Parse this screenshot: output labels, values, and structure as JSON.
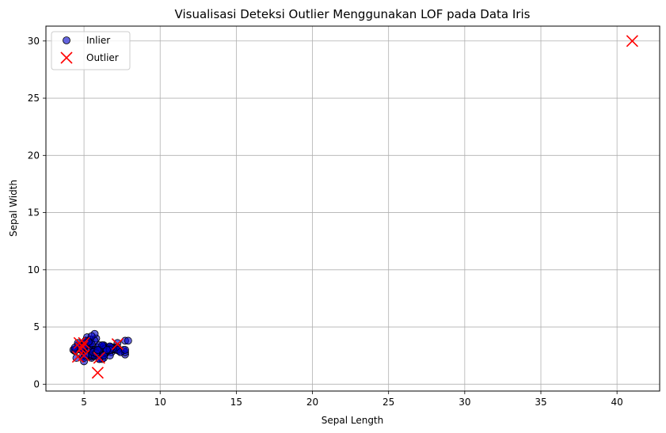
{
  "chart_data": {
    "type": "scatter",
    "title": "Visualisasi Deteksi Outlier Menggunakan LOF pada Data Iris",
    "xlabel": "Sepal Length",
    "ylabel": "Sepal Width",
    "xlim": [
      2.5,
      42.8
    ],
    "ylim": [
      -0.6,
      31.3
    ],
    "xticks": [
      5,
      10,
      15,
      20,
      25,
      30,
      35,
      40
    ],
    "yticks": [
      0,
      5,
      10,
      15,
      20,
      25,
      30
    ],
    "grid": true,
    "legend_position": "top-left",
    "series": [
      {
        "name": "Inlier",
        "marker": "circle",
        "color": "#0000cc",
        "edge_color": "#000000",
        "alpha": 0.6,
        "points": [
          [
            5.1,
            3.5
          ],
          [
            4.9,
            3.0
          ],
          [
            4.7,
            3.2
          ],
          [
            4.6,
            3.1
          ],
          [
            5.0,
            3.6
          ],
          [
            5.4,
            3.9
          ],
          [
            4.6,
            3.4
          ],
          [
            5.0,
            3.4
          ],
          [
            4.4,
            2.9
          ],
          [
            4.9,
            3.1
          ],
          [
            5.4,
            3.7
          ],
          [
            4.8,
            3.4
          ],
          [
            4.8,
            3.0
          ],
          [
            4.3,
            3.0
          ],
          [
            5.8,
            4.0
          ],
          [
            5.7,
            4.4
          ],
          [
            5.4,
            3.9
          ],
          [
            5.1,
            3.5
          ],
          [
            5.7,
            3.8
          ],
          [
            5.1,
            3.8
          ],
          [
            5.4,
            3.4
          ],
          [
            5.1,
            3.7
          ],
          [
            4.6,
            3.6
          ],
          [
            5.1,
            3.3
          ],
          [
            4.8,
            3.4
          ],
          [
            5.0,
            3.0
          ],
          [
            5.0,
            3.4
          ],
          [
            5.2,
            3.5
          ],
          [
            5.2,
            3.4
          ],
          [
            4.7,
            3.2
          ],
          [
            5.4,
            3.4
          ],
          [
            5.2,
            4.1
          ],
          [
            5.5,
            4.2
          ],
          [
            5.0,
            3.2
          ],
          [
            5.5,
            3.5
          ],
          [
            4.4,
            3.0
          ],
          [
            5.1,
            3.4
          ],
          [
            5.0,
            3.5
          ],
          [
            4.5,
            2.3
          ],
          [
            4.4,
            3.2
          ],
          [
            5.1,
            3.8
          ],
          [
            4.8,
            3.0
          ],
          [
            5.3,
            3.7
          ],
          [
            5.0,
            3.3
          ],
          [
            7.0,
            3.2
          ],
          [
            6.4,
            3.2
          ],
          [
            6.9,
            3.1
          ],
          [
            5.5,
            2.3
          ],
          [
            6.5,
            2.8
          ],
          [
            5.7,
            2.8
          ],
          [
            6.3,
            3.3
          ],
          [
            4.9,
            2.4
          ],
          [
            6.6,
            2.9
          ],
          [
            5.2,
            2.7
          ],
          [
            5.0,
            2.0
          ],
          [
            5.9,
            3.0
          ],
          [
            6.0,
            2.2
          ],
          [
            6.1,
            2.9
          ],
          [
            5.6,
            2.9
          ],
          [
            6.7,
            3.1
          ],
          [
            5.6,
            3.0
          ],
          [
            5.8,
            2.7
          ],
          [
            6.2,
            2.2
          ],
          [
            5.6,
            2.5
          ],
          [
            5.9,
            3.2
          ],
          [
            6.1,
            2.8
          ],
          [
            6.3,
            2.5
          ],
          [
            6.4,
            2.9
          ],
          [
            6.6,
            3.0
          ],
          [
            6.8,
            2.8
          ],
          [
            6.7,
            3.0
          ],
          [
            6.0,
            2.9
          ],
          [
            5.7,
            2.6
          ],
          [
            5.5,
            2.4
          ],
          [
            5.8,
            2.7
          ],
          [
            6.0,
            2.7
          ],
          [
            5.4,
            3.0
          ],
          [
            6.0,
            3.4
          ],
          [
            6.7,
            3.1
          ],
          [
            6.3,
            2.3
          ],
          [
            5.6,
            3.0
          ],
          [
            5.5,
            2.5
          ],
          [
            5.5,
            2.6
          ],
          [
            6.1,
            3.0
          ],
          [
            5.8,
            2.6
          ],
          [
            5.0,
            2.3
          ],
          [
            5.7,
            3.0
          ],
          [
            5.7,
            2.9
          ],
          [
            6.2,
            2.9
          ],
          [
            5.1,
            2.5
          ],
          [
            6.3,
            3.3
          ],
          [
            5.8,
            2.7
          ],
          [
            7.1,
            3.0
          ],
          [
            6.3,
            2.9
          ],
          [
            6.5,
            3.0
          ],
          [
            7.6,
            3.0
          ],
          [
            7.3,
            2.9
          ],
          [
            6.7,
            2.5
          ],
          [
            7.2,
            3.6
          ],
          [
            6.5,
            3.2
          ],
          [
            6.4,
            2.7
          ],
          [
            6.8,
            3.0
          ],
          [
            5.7,
            2.5
          ],
          [
            5.8,
            2.8
          ],
          [
            6.4,
            3.2
          ],
          [
            6.5,
            3.0
          ],
          [
            7.7,
            3.8
          ],
          [
            7.7,
            2.6
          ],
          [
            6.0,
            2.2
          ],
          [
            6.9,
            3.2
          ],
          [
            5.6,
            2.8
          ],
          [
            7.7,
            2.8
          ],
          [
            6.3,
            2.7
          ],
          [
            6.7,
            3.3
          ],
          [
            7.2,
            3.2
          ],
          [
            6.2,
            2.8
          ],
          [
            6.1,
            3.0
          ],
          [
            6.4,
            2.8
          ],
          [
            7.2,
            3.0
          ],
          [
            7.4,
            2.8
          ],
          [
            7.9,
            3.8
          ],
          [
            6.4,
            2.8
          ],
          [
            6.3,
            2.8
          ],
          [
            6.1,
            2.6
          ],
          [
            7.7,
            3.0
          ],
          [
            6.3,
            3.4
          ],
          [
            6.4,
            3.1
          ],
          [
            6.0,
            3.0
          ],
          [
            6.9,
            3.1
          ],
          [
            6.7,
            3.1
          ],
          [
            6.9,
            3.1
          ],
          [
            5.8,
            2.7
          ],
          [
            6.8,
            3.2
          ],
          [
            6.7,
            3.3
          ],
          [
            6.7,
            3.0
          ],
          [
            6.3,
            2.5
          ],
          [
            6.5,
            3.0
          ],
          [
            6.2,
            3.4
          ],
          [
            5.9,
            3.0
          ]
        ]
      },
      {
        "name": "Outlier",
        "marker": "x",
        "color": "#ff0000",
        "points": [
          [
            41.0,
            30.0
          ],
          [
            4.7,
            3.6
          ],
          [
            4.9,
            3.3
          ],
          [
            5.0,
            3.6
          ],
          [
            4.6,
            2.4
          ],
          [
            5.0,
            2.5
          ],
          [
            5.9,
            1.0
          ],
          [
            6.0,
            2.3
          ],
          [
            7.2,
            3.5
          ],
          [
            4.8,
            3.1
          ]
        ]
      }
    ]
  }
}
